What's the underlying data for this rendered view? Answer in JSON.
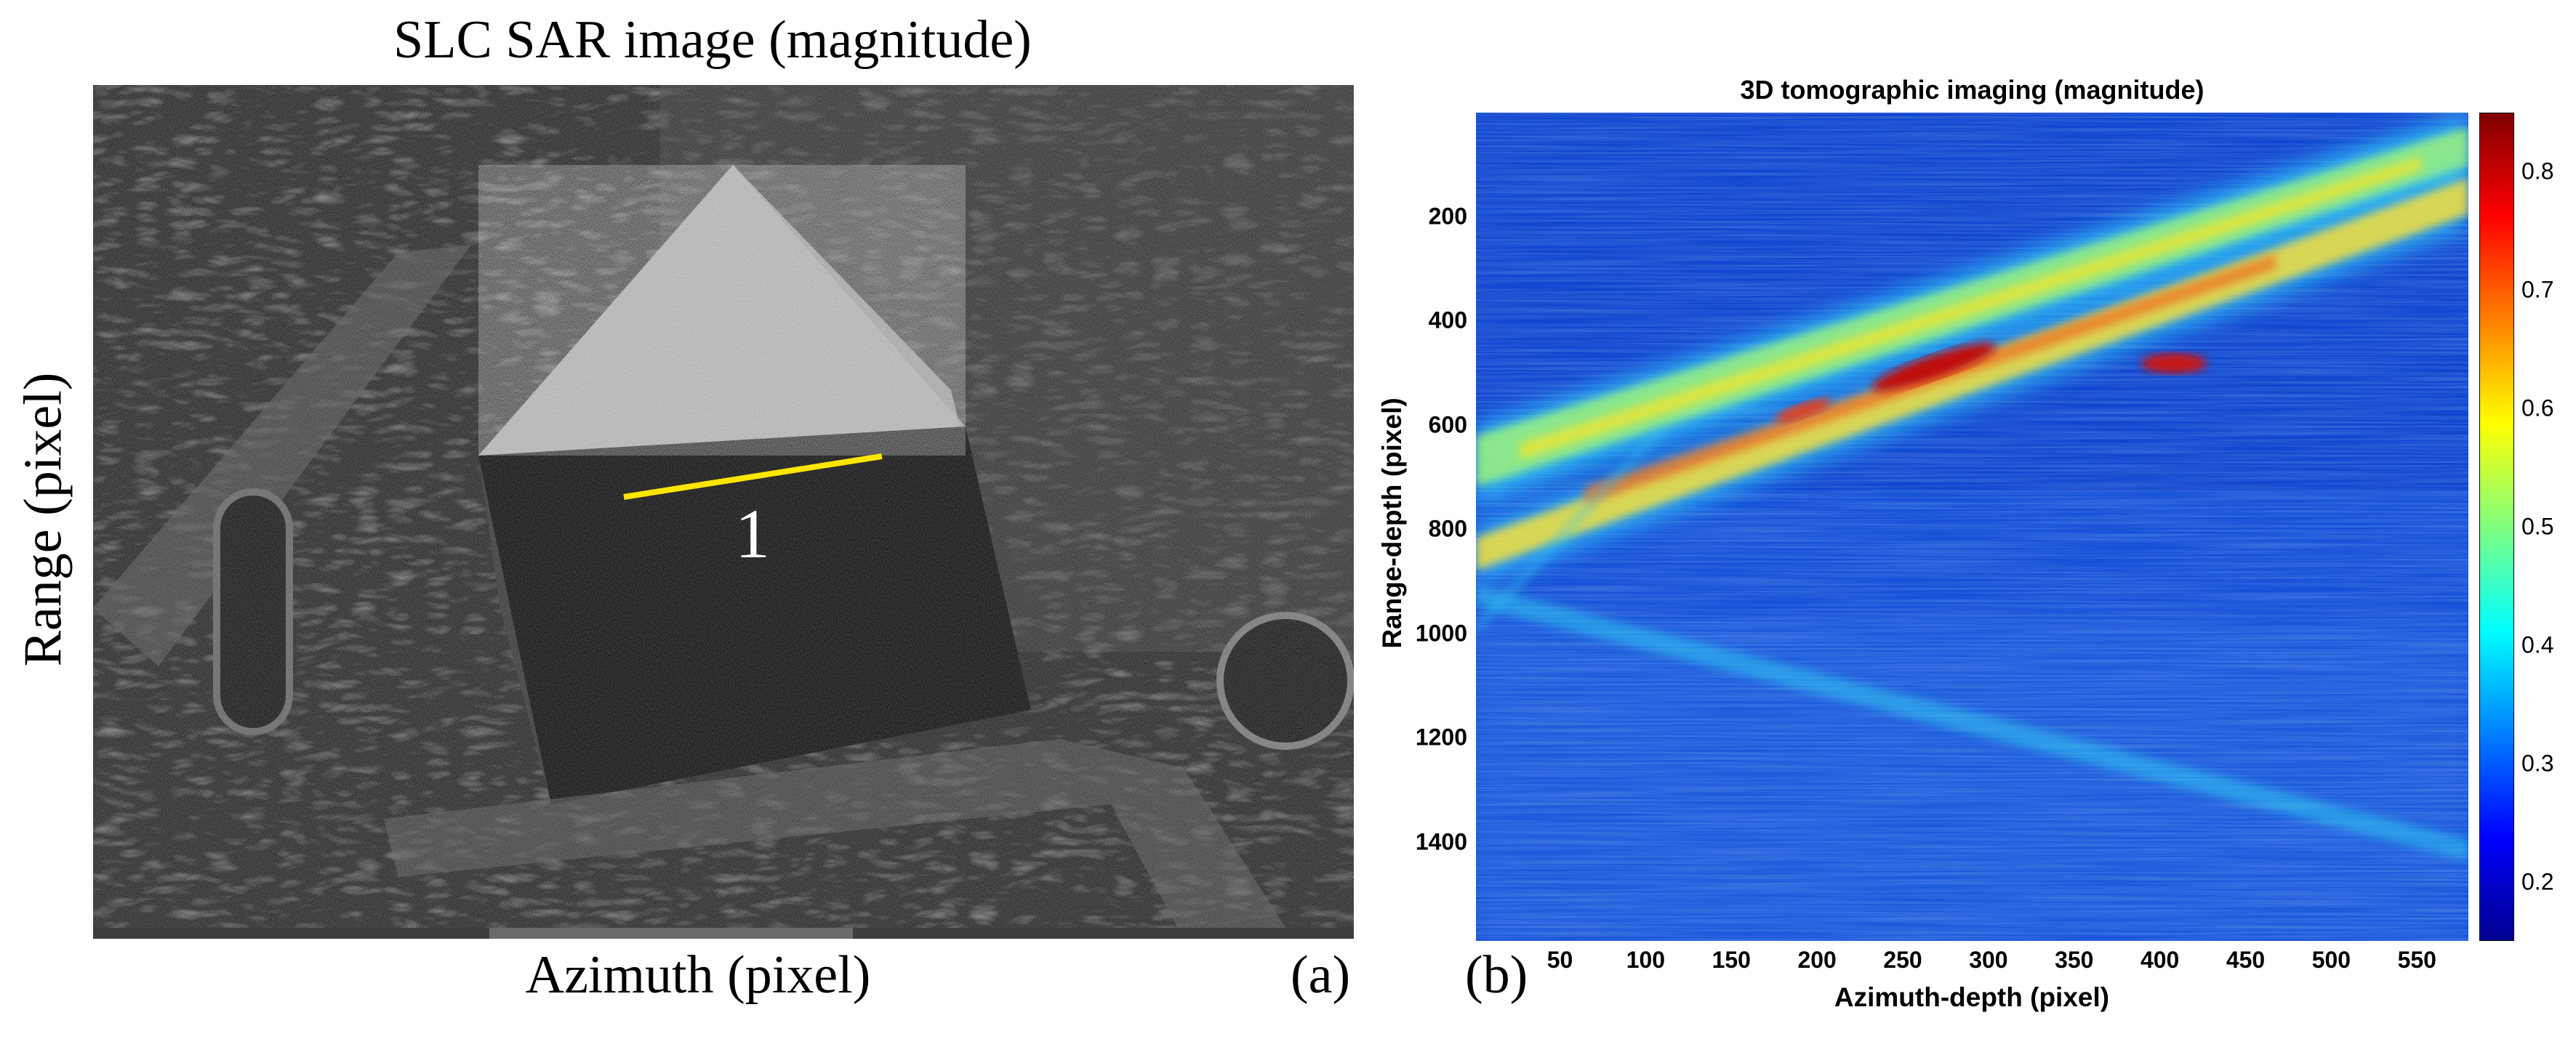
{
  "panel_a": {
    "title": "SLC SAR image (magnitude)",
    "xlabel": "Azimuth (pixel)",
    "ylabel": "Range (pixel)",
    "panel_label": "(a)",
    "annotation": "1"
  },
  "panel_b": {
    "title": "3D tomographic imaging (magnitude)",
    "xlabel": "Azimuth-depth (pixel)",
    "ylabel": "Range-depth (pixel)",
    "panel_label": "(b)",
    "xticks": [
      "50",
      "100",
      "150",
      "200",
      "250",
      "300",
      "350",
      "400",
      "450",
      "500",
      "550"
    ],
    "yticks": [
      "200",
      "400",
      "600",
      "800",
      "1000",
      "1200",
      "1400"
    ],
    "cticks": [
      "0.2",
      "0.3",
      "0.4",
      "0.5",
      "0.6",
      "0.7",
      "0.8"
    ],
    "x_range": [
      1,
      580
    ],
    "y_range": [
      1,
      1590
    ],
    "c_range": [
      0.15,
      0.85
    ],
    "colormap": "jet"
  }
}
